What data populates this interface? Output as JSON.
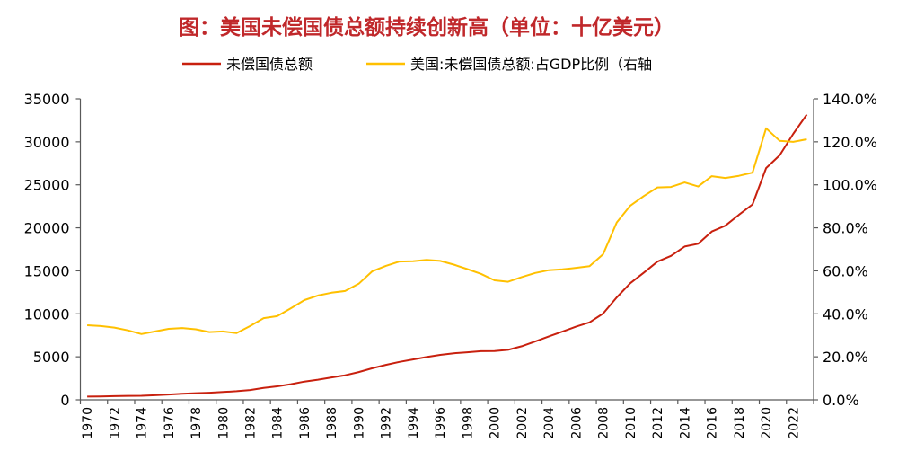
{
  "chart_data": {
    "type": "line",
    "title": "图：美国未偿国债总额持续创新高（单位：十亿美元）",
    "x": [
      1970,
      1971,
      1972,
      1973,
      1974,
      1975,
      1976,
      1977,
      1978,
      1979,
      1980,
      1981,
      1982,
      1983,
      1984,
      1985,
      1986,
      1987,
      1988,
      1989,
      1990,
      1991,
      1992,
      1993,
      1994,
      1995,
      1996,
      1997,
      1998,
      1999,
      2000,
      2001,
      2002,
      2003,
      2004,
      2005,
      2006,
      2007,
      2008,
      2009,
      2010,
      2011,
      2012,
      2013,
      2014,
      2015,
      2016,
      2017,
      2018,
      2019,
      2020,
      2021,
      2022,
      2023
    ],
    "x_tick_labels": [
      "1970",
      "1972",
      "1974",
      "1976",
      "1978",
      "1980",
      "1982",
      "1984",
      "1986",
      "1988",
      "1990",
      "1992",
      "1994",
      "1996",
      "1998",
      "2000",
      "2002",
      "2004",
      "2006",
      "2008",
      "2010",
      "2012",
      "2014",
      "2016",
      "2018",
      "2020",
      "2022"
    ],
    "y_left": {
      "range": [
        0,
        35000
      ],
      "ticks": [
        "0",
        "5000",
        "10000",
        "15000",
        "20000",
        "25000",
        "30000",
        "35000"
      ]
    },
    "y_right": {
      "range": [
        0,
        140
      ],
      "ticks": [
        "0.0%",
        "20.0%",
        "40.0%",
        "60.0%",
        "80.0%",
        "100.0%",
        "120.0%",
        "140.0%"
      ]
    },
    "grid": false,
    "legend_position": "top",
    "series": [
      {
        "name": "未偿国债总额",
        "axis": "left",
        "color": "#C8200E",
        "values": [
          371,
          398,
          427,
          458,
          475,
          533,
          620,
          699,
          772,
          827,
          908,
          998,
          1142,
          1377,
          1572,
          1823,
          2125,
          2340,
          2602,
          2857,
          3233,
          3665,
          4065,
          4411,
          4693,
          4974,
          5225,
          5413,
          5526,
          5656,
          5674,
          5807,
          6228,
          6783,
          7379,
          7933,
          8507,
          9008,
          10025,
          11910,
          13562,
          14790,
          16066,
          16738,
          17824,
          18151,
          19573,
          20245,
          21516,
          22719,
          26945,
          28429,
          30929,
          33167
        ]
      },
      {
        "name": "美国:未偿国债总额:占GDP比例（右轴",
        "axis": "right",
        "color": "#FFC000",
        "values": [
          34.7,
          34.3,
          33.6,
          32.3,
          30.6,
          31.8,
          33.0,
          33.4,
          32.8,
          31.5,
          31.8,
          31.0,
          34.3,
          38.0,
          38.9,
          42.6,
          46.4,
          48.5,
          49.8,
          50.6,
          54.0,
          59.8,
          62.3,
          64.3,
          64.5,
          65.1,
          64.6,
          62.9,
          60.8,
          58.6,
          55.6,
          54.9,
          57.1,
          59.0,
          60.3,
          60.7,
          61.4,
          62.2,
          67.7,
          82.5,
          90.3,
          94.8,
          98.8,
          99.0,
          101.1,
          99.2,
          104.0,
          103.2,
          104.2,
          105.7,
          126.3,
          120.5,
          120.0,
          121.2
        ]
      }
    ]
  }
}
